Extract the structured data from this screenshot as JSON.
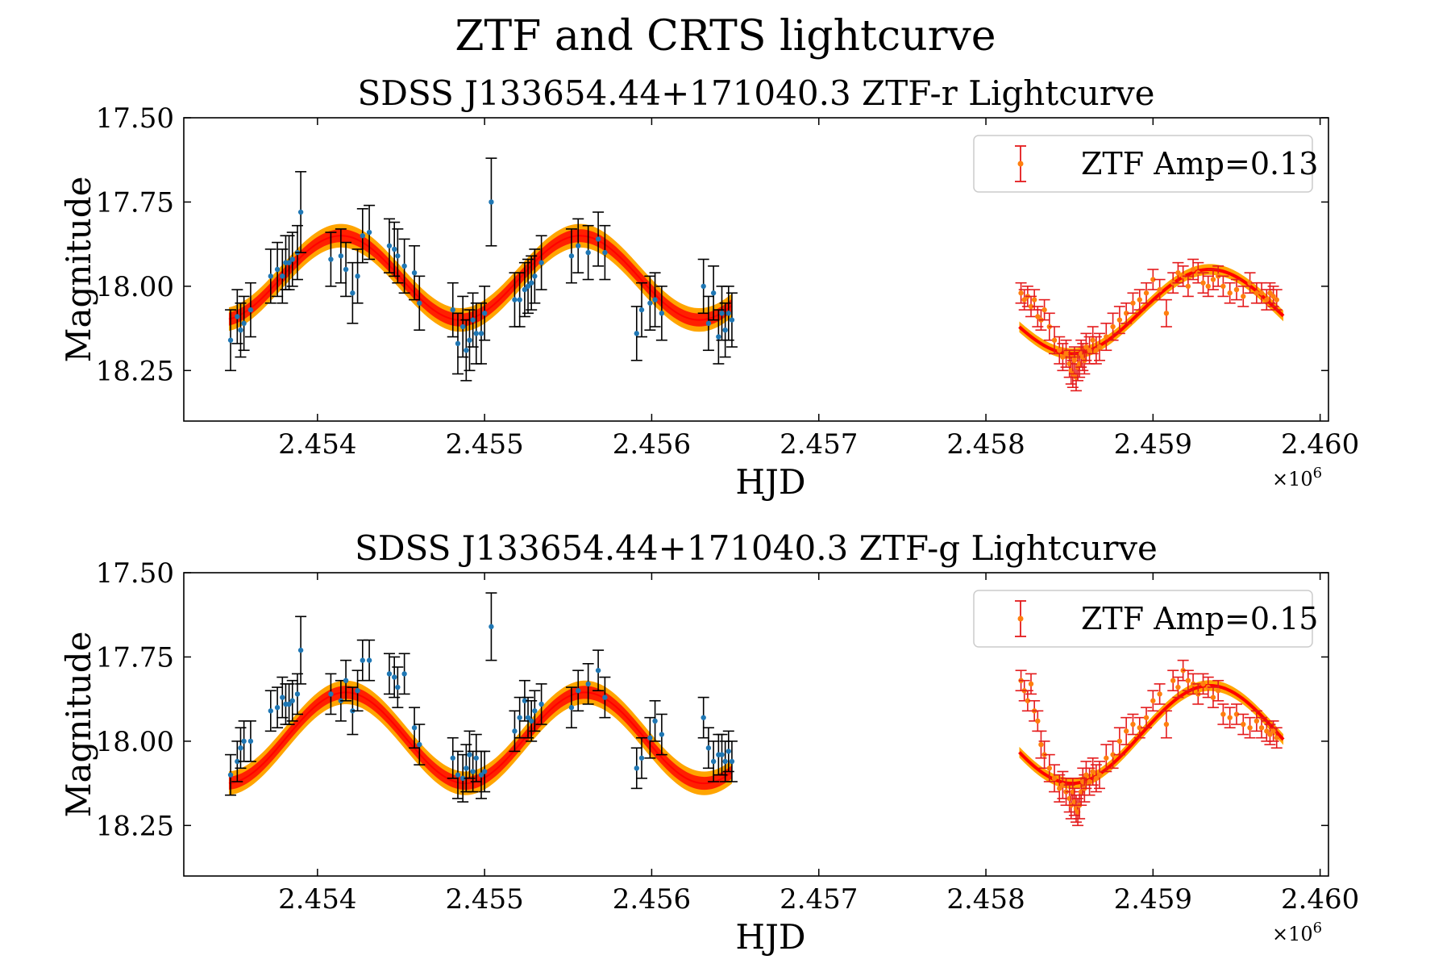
{
  "figure": {
    "suptitle": "ZTF and CRTS lightcurve",
    "colors": {
      "crts_points": "#1f77b4",
      "crts_errorbars": "#000000",
      "ztf_points": "#ff7f0e",
      "ztf_errorbars": "#e41a1c",
      "model_line": "#ff0000",
      "model_band_outer": "#ffa500",
      "model_band_inner": "#ff2000"
    }
  },
  "chart_data": [
    {
      "type": "scatter",
      "title": "SDSS J133654.44+171040.3 ZTF-r Lightcurve",
      "xlabel": "HJD",
      "ylabel": "Magnitude",
      "x_multiplier_label": "×10",
      "x_multiplier_exp": "6",
      "xlim": [
        2453200,
        2460050
      ],
      "ylim": [
        18.4,
        17.5
      ],
      "y_inverted": true,
      "grid": false,
      "xticks": [
        2454000,
        2455000,
        2456000,
        2457000,
        2458000,
        2459000,
        2460000
      ],
      "xtick_labels": [
        "2.454",
        "2.455",
        "2.456",
        "2.457",
        "2.458",
        "2.459",
        "2.460"
      ],
      "yticks": [
        17.5,
        17.75,
        18.0,
        18.25
      ],
      "ytick_labels": [
        "17.50",
        "17.75",
        "18.00",
        "18.25"
      ],
      "legend": {
        "placement": "top-right",
        "label": "ZTF Amp=0.13"
      },
      "model": {
        "crts": {
          "x_start": 2453470,
          "x_end": 2456480,
          "mean": 17.975,
          "amplitude": 0.125,
          "period": 1430,
          "peak_x": 2454140,
          "band": 0.035
        },
        "ztf": {
          "x_start": 2458200,
          "x_end": 2459780,
          "mean": 18.075,
          "amplitude": 0.125,
          "period": 1650,
          "peak_x": 2459340,
          "band": 0.01
        }
      },
      "series": [
        {
          "name": "CRTS",
          "x": [
            2453480,
            2453520,
            2453540,
            2453560,
            2453600,
            2453720,
            2453760,
            2453790,
            2453810,
            2453830,
            2453850,
            2453880,
            2453900,
            2454080,
            2454140,
            2454170,
            2454210,
            2454240,
            2454270,
            2454310,
            2454430,
            2454460,
            2454480,
            2454520,
            2454580,
            2454610,
            2454810,
            2454840,
            2454870,
            2454890,
            2454910,
            2454930,
            2454950,
            2454980,
            2455000,
            2455040,
            2455180,
            2455210,
            2455240,
            2455260,
            2455280,
            2455300,
            2455340,
            2455520,
            2455560,
            2455620,
            2455680,
            2455720,
            2455910,
            2455940,
            2455990,
            2456020,
            2456060,
            2456310,
            2456340,
            2456370,
            2456400,
            2456420,
            2456440,
            2456460,
            2456480
          ],
          "y": [
            18.16,
            18.09,
            18.13,
            18.11,
            18.07,
            17.97,
            17.95,
            17.97,
            17.93,
            17.93,
            17.92,
            17.9,
            17.78,
            17.92,
            17.91,
            17.95,
            18.02,
            17.97,
            17.85,
            17.84,
            17.88,
            17.89,
            17.91,
            17.94,
            17.96,
            18.05,
            18.07,
            18.17,
            18.12,
            18.19,
            18.16,
            18.1,
            18.14,
            18.14,
            18.08,
            17.75,
            18.04,
            18.04,
            18.01,
            18.0,
            17.99,
            17.97,
            17.93,
            17.91,
            17.88,
            17.9,
            17.86,
            17.9,
            18.14,
            18.07,
            18.05,
            18.04,
            18.08,
            18.0,
            18.11,
            18.02,
            18.15,
            18.08,
            18.13,
            18.08,
            18.1
          ],
          "yerr": [
            0.09,
            0.08,
            0.08,
            0.08,
            0.08,
            0.08,
            0.08,
            0.08,
            0.08,
            0.08,
            0.08,
            0.08,
            0.12,
            0.08,
            0.08,
            0.08,
            0.09,
            0.08,
            0.08,
            0.08,
            0.08,
            0.08,
            0.08,
            0.08,
            0.08,
            0.08,
            0.08,
            0.09,
            0.09,
            0.09,
            0.09,
            0.08,
            0.09,
            0.09,
            0.08,
            0.13,
            0.08,
            0.08,
            0.08,
            0.08,
            0.08,
            0.08,
            0.08,
            0.08,
            0.08,
            0.08,
            0.08,
            0.08,
            0.08,
            0.08,
            0.08,
            0.08,
            0.08,
            0.08,
            0.08,
            0.08,
            0.08,
            0.08,
            0.08,
            0.08,
            0.08
          ]
        },
        {
          "name": "ZTF Amp=0.13",
          "x": [
            2458210,
            2458230,
            2458250,
            2458270,
            2458290,
            2458310,
            2458330,
            2458350,
            2458380,
            2458410,
            2458440,
            2458460,
            2458480,
            2458500,
            2458510,
            2458520,
            2458530,
            2458540,
            2458550,
            2458560,
            2458570,
            2458580,
            2458590,
            2458600,
            2458620,
            2458640,
            2458660,
            2458680,
            2458720,
            2458760,
            2458800,
            2458840,
            2458880,
            2458920,
            2458960,
            2459000,
            2459040,
            2459080,
            2459120,
            2459150,
            2459180,
            2459210,
            2459240,
            2459270,
            2459300,
            2459330,
            2459360,
            2459390,
            2459420,
            2459460,
            2459500,
            2459540,
            2459580,
            2459620,
            2459650,
            2459680,
            2459700,
            2459720,
            2459740
          ],
          "y": [
            18.02,
            18.04,
            18.03,
            18.06,
            18.04,
            18.09,
            18.1,
            18.07,
            18.12,
            18.16,
            18.19,
            18.21,
            18.2,
            18.23,
            18.25,
            18.26,
            18.22,
            18.27,
            18.24,
            18.23,
            18.2,
            18.21,
            18.22,
            18.18,
            18.19,
            18.16,
            18.19,
            18.18,
            18.15,
            18.12,
            18.1,
            18.08,
            18.05,
            18.04,
            18.02,
            17.98,
            18.01,
            18.08,
            17.99,
            17.96,
            17.97,
            18.0,
            17.95,
            17.96,
            17.99,
            18.0,
            17.98,
            17.97,
            18.0,
            18.02,
            18.01,
            18.03,
            17.99,
            18.02,
            18.02,
            18.04,
            18.02,
            18.03,
            18.04
          ],
          "yerr": [
            0.03,
            0.03,
            0.03,
            0.03,
            0.03,
            0.03,
            0.03,
            0.03,
            0.04,
            0.04,
            0.04,
            0.04,
            0.04,
            0.04,
            0.04,
            0.04,
            0.04,
            0.04,
            0.04,
            0.04,
            0.04,
            0.04,
            0.04,
            0.04,
            0.04,
            0.04,
            0.04,
            0.04,
            0.04,
            0.04,
            0.04,
            0.03,
            0.03,
            0.03,
            0.03,
            0.03,
            0.03,
            0.04,
            0.03,
            0.03,
            0.03,
            0.03,
            0.03,
            0.03,
            0.03,
            0.03,
            0.03,
            0.03,
            0.03,
            0.03,
            0.03,
            0.03,
            0.03,
            0.03,
            0.03,
            0.03,
            0.03,
            0.03,
            0.03
          ]
        }
      ]
    },
    {
      "type": "scatter",
      "title": "SDSS J133654.44+171040.3 ZTF-g Lightcurve",
      "xlabel": "HJD",
      "ylabel": "Magnitude",
      "x_multiplier_label": "×10",
      "x_multiplier_exp": "6",
      "xlim": [
        2453200,
        2460050
      ],
      "ylim": [
        18.4,
        17.5
      ],
      "y_inverted": true,
      "grid": false,
      "xticks": [
        2454000,
        2455000,
        2456000,
        2457000,
        2458000,
        2459000,
        2460000
      ],
      "xtick_labels": [
        "2.454",
        "2.455",
        "2.456",
        "2.457",
        "2.458",
        "2.459",
        "2.460"
      ],
      "yticks": [
        17.5,
        17.75,
        18.0,
        18.25
      ],
      "ytick_labels": [
        "17.50",
        "17.75",
        "18.00",
        "18.25"
      ],
      "legend": {
        "placement": "top-right",
        "label": "ZTF Amp=0.15"
      },
      "model": {
        "crts": {
          "x_start": 2453470,
          "x_end": 2456480,
          "mean": 17.99,
          "amplitude": 0.135,
          "period": 1430,
          "peak_x": 2454170,
          "band": 0.035
        },
        "ztf": {
          "x_start": 2458200,
          "x_end": 2459780,
          "mean": 17.98,
          "amplitude": 0.145,
          "period": 1650,
          "peak_x": 2459340,
          "band": 0.01
        }
      },
      "series": [
        {
          "name": "CRTS",
          "x": [
            2453480,
            2453520,
            2453540,
            2453560,
            2453600,
            2453720,
            2453760,
            2453790,
            2453810,
            2453830,
            2453850,
            2453880,
            2453900,
            2454080,
            2454140,
            2454170,
            2454210,
            2454240,
            2454270,
            2454310,
            2454430,
            2454460,
            2454480,
            2454520,
            2454580,
            2454610,
            2454810,
            2454840,
            2454870,
            2454890,
            2454910,
            2454930,
            2454950,
            2454980,
            2455000,
            2455040,
            2455180,
            2455210,
            2455240,
            2455260,
            2455280,
            2455300,
            2455340,
            2455520,
            2455560,
            2455620,
            2455680,
            2455720,
            2455910,
            2455940,
            2455990,
            2456020,
            2456060,
            2456310,
            2456340,
            2456370,
            2456400,
            2456420,
            2456440,
            2456460,
            2456480
          ],
          "y": [
            18.1,
            18.06,
            18.02,
            18.0,
            18.0,
            17.91,
            17.9,
            17.87,
            17.89,
            17.89,
            17.88,
            17.86,
            17.73,
            17.86,
            17.88,
            17.82,
            17.91,
            17.85,
            17.76,
            17.76,
            17.8,
            17.81,
            17.84,
            17.8,
            17.96,
            18.01,
            18.05,
            18.1,
            18.11,
            18.08,
            18.04,
            18.09,
            18.05,
            18.1,
            18.09,
            17.66,
            17.97,
            17.93,
            17.88,
            17.93,
            17.94,
            17.91,
            17.89,
            17.9,
            17.85,
            17.83,
            17.79,
            17.87,
            18.08,
            18.05,
            17.99,
            17.94,
            17.98,
            17.93,
            18.02,
            18.06,
            18.04,
            18.04,
            18.06,
            18.03,
            18.06
          ],
          "yerr": [
            0.06,
            0.06,
            0.06,
            0.06,
            0.06,
            0.06,
            0.06,
            0.06,
            0.06,
            0.06,
            0.06,
            0.06,
            0.1,
            0.06,
            0.06,
            0.06,
            0.07,
            0.06,
            0.06,
            0.06,
            0.06,
            0.06,
            0.06,
            0.06,
            0.06,
            0.06,
            0.06,
            0.07,
            0.07,
            0.07,
            0.07,
            0.06,
            0.07,
            0.07,
            0.06,
            0.1,
            0.06,
            0.06,
            0.06,
            0.06,
            0.06,
            0.06,
            0.06,
            0.06,
            0.06,
            0.06,
            0.06,
            0.06,
            0.06,
            0.06,
            0.06,
            0.06,
            0.06,
            0.06,
            0.06,
            0.06,
            0.06,
            0.06,
            0.06,
            0.06,
            0.06
          ]
        },
        {
          "name": "ZTF Amp=0.15",
          "x": [
            2458210,
            2458230,
            2458250,
            2458270,
            2458290,
            2458310,
            2458330,
            2458350,
            2458380,
            2458410,
            2458440,
            2458460,
            2458480,
            2458500,
            2458510,
            2458520,
            2458530,
            2458540,
            2458550,
            2458560,
            2458570,
            2458580,
            2458590,
            2458600,
            2458620,
            2458640,
            2458660,
            2458680,
            2458720,
            2458760,
            2458800,
            2458840,
            2458880,
            2458920,
            2458960,
            2459000,
            2459040,
            2459080,
            2459120,
            2459150,
            2459180,
            2459210,
            2459240,
            2459270,
            2459300,
            2459330,
            2459360,
            2459390,
            2459420,
            2459460,
            2459500,
            2459540,
            2459580,
            2459620,
            2459650,
            2459680,
            2459700,
            2459720,
            2459740
          ],
          "y": [
            17.82,
            17.85,
            17.88,
            17.83,
            17.91,
            17.94,
            18.01,
            18.04,
            18.08,
            18.11,
            18.14,
            18.13,
            18.15,
            18.17,
            18.19,
            18.15,
            18.18,
            18.2,
            18.21,
            18.19,
            18.15,
            18.12,
            18.14,
            18.1,
            18.12,
            18.09,
            18.11,
            18.1,
            18.05,
            18.04,
            18.0,
            17.97,
            17.95,
            17.96,
            17.93,
            17.88,
            17.86,
            17.95,
            17.82,
            17.84,
            17.79,
            17.82,
            17.83,
            17.86,
            17.83,
            17.84,
            17.87,
            17.85,
            17.92,
            17.93,
            17.92,
            17.95,
            17.96,
            17.94,
            17.96,
            17.97,
            17.98,
            17.97,
            17.99
          ],
          "yerr": [
            0.03,
            0.03,
            0.03,
            0.03,
            0.03,
            0.03,
            0.04,
            0.04,
            0.04,
            0.04,
            0.04,
            0.04,
            0.04,
            0.04,
            0.04,
            0.04,
            0.04,
            0.04,
            0.04,
            0.04,
            0.04,
            0.04,
            0.04,
            0.04,
            0.04,
            0.04,
            0.04,
            0.04,
            0.04,
            0.04,
            0.04,
            0.04,
            0.03,
            0.03,
            0.03,
            0.03,
            0.03,
            0.04,
            0.03,
            0.03,
            0.03,
            0.03,
            0.03,
            0.03,
            0.03,
            0.03,
            0.03,
            0.03,
            0.03,
            0.03,
            0.03,
            0.03,
            0.03,
            0.03,
            0.03,
            0.03,
            0.03,
            0.03,
            0.03
          ]
        }
      ]
    }
  ]
}
